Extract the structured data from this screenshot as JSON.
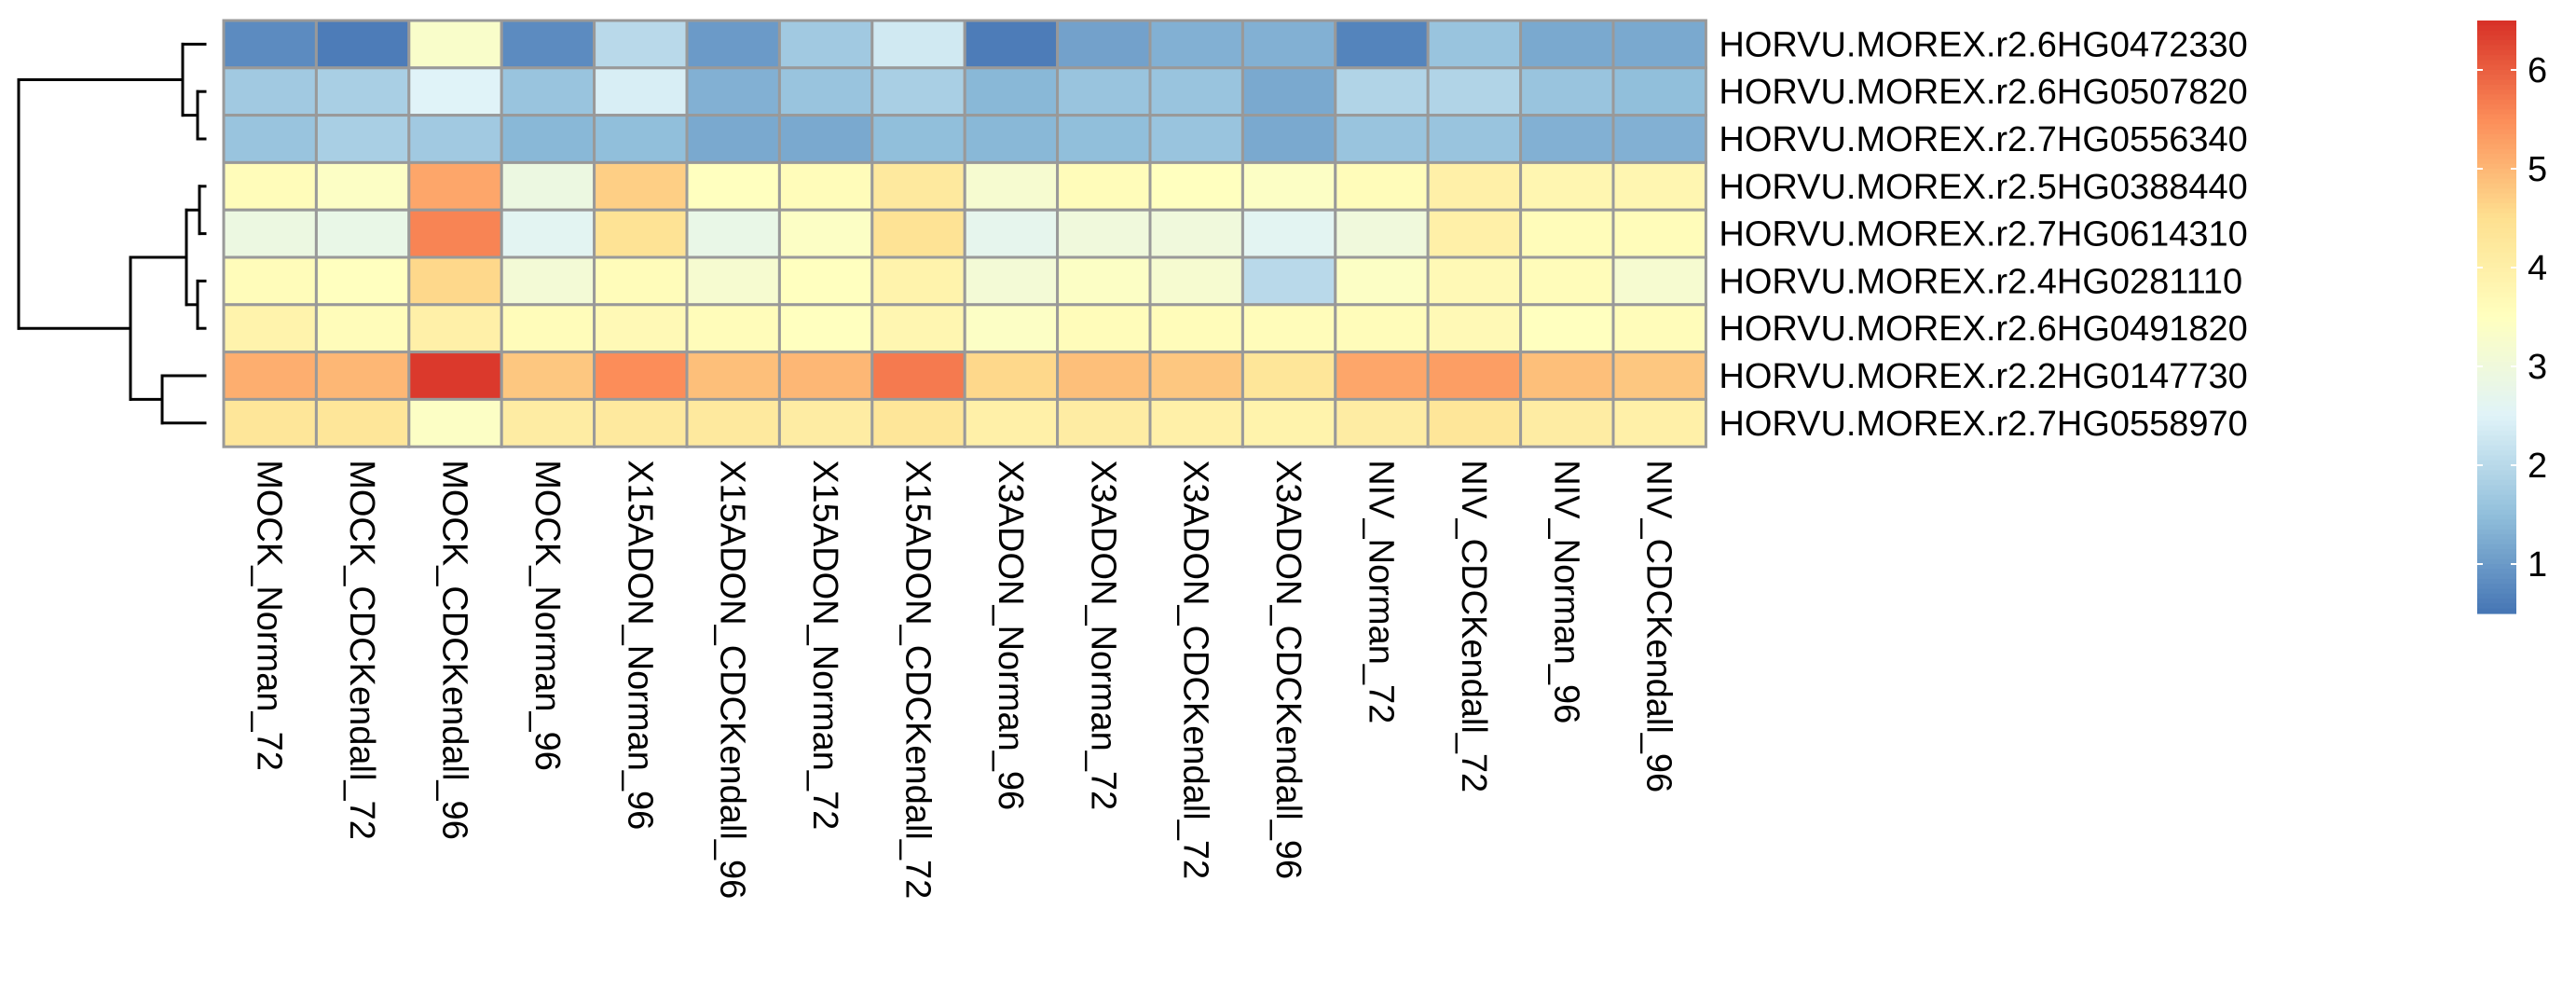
{
  "chart_data": {
    "type": "heatmap",
    "title": "",
    "xlabel": "",
    "ylabel": "",
    "columns": [
      "MOCK_Norman_72",
      "MOCK_CDCKendall_72",
      "MOCK_CDCKendall_96",
      "MOCK_Norman_96",
      "X15ADON_Norman_96",
      "X15ADON_CDCKendall_96",
      "X15ADON_Norman_72",
      "X15ADON_CDCKendall_72",
      "X3ADON_Norman_96",
      "X3ADON_Norman_72",
      "X3ADON_CDCKendall_72",
      "X3ADON_CDCKendall_96",
      "NIV_Norman_72",
      "NIV_CDCKendall_72",
      "NIV_Norman_96",
      "NIV_CDCKendall_96"
    ],
    "rows": [
      "HORVU.MOREX.r2.6HG0472330",
      "HORVU.MOREX.r2.6HG0507820",
      "HORVU.MOREX.r2.7HG0556340",
      "HORVU.MOREX.r2.5HG0388440",
      "HORVU.MOREX.r2.7HG0614310",
      "HORVU.MOREX.r2.4HG0281110",
      "HORVU.MOREX.r2.6HG0491820",
      "HORVU.MOREX.r2.2HG0147730",
      "HORVU.MOREX.r2.7HG0558970"
    ],
    "values": [
      [
        0.8,
        0.6,
        3.3,
        0.8,
        2.0,
        1.0,
        1.7,
        2.3,
        0.6,
        1.1,
        1.3,
        1.3,
        0.7,
        1.6,
        1.2,
        1.2
      ],
      [
        1.7,
        1.8,
        2.5,
        1.6,
        2.4,
        1.3,
        1.6,
        1.8,
        1.4,
        1.6,
        1.6,
        1.2,
        1.9,
        1.9,
        1.6,
        1.5
      ],
      [
        1.6,
        1.8,
        1.7,
        1.4,
        1.5,
        1.2,
        1.2,
        1.5,
        1.4,
        1.5,
        1.6,
        1.2,
        1.6,
        1.6,
        1.3,
        1.3
      ],
      [
        3.6,
        3.4,
        5.2,
        2.9,
        4.7,
        3.5,
        3.6,
        4.2,
        3.2,
        3.6,
        3.5,
        3.4,
        3.6,
        4.0,
        3.8,
        3.8
      ],
      [
        2.9,
        2.8,
        5.6,
        2.6,
        4.4,
        2.8,
        3.4,
        4.4,
        2.7,
        3.0,
        3.0,
        2.6,
        3.0,
        4.0,
        3.6,
        3.6
      ],
      [
        3.6,
        3.5,
        4.6,
        3.1,
        3.6,
        3.2,
        3.5,
        3.9,
        3.1,
        3.4,
        3.2,
        2.0,
        3.4,
        3.7,
        3.6,
        3.2
      ],
      [
        3.9,
        3.6,
        4.0,
        3.6,
        3.7,
        3.6,
        3.5,
        3.8,
        3.4,
        3.6,
        3.6,
        3.6,
        3.6,
        3.7,
        3.5,
        3.6
      ],
      [
        5.1,
        5.0,
        6.4,
        4.8,
        5.5,
        4.9,
        5.0,
        5.7,
        4.6,
        4.9,
        4.8,
        4.3,
        5.2,
        5.3,
        4.9,
        4.8
      ],
      [
        4.3,
        4.3,
        3.4,
        4.1,
        4.2,
        4.2,
        4.1,
        4.3,
        4.0,
        4.1,
        4.0,
        3.9,
        4.1,
        4.3,
        4.1,
        4.0
      ]
    ],
    "legend": {
      "placement": "right",
      "ticks": [
        "1",
        "2",
        "3",
        "4",
        "5",
        "6"
      ],
      "range": [
        0.5,
        6.5
      ]
    },
    "dendrogram": "rows",
    "colors": {
      "low": "#4575B4",
      "mid": "#FFFFBF",
      "high": "#D73027",
      "cell_border": "#999999"
    }
  }
}
